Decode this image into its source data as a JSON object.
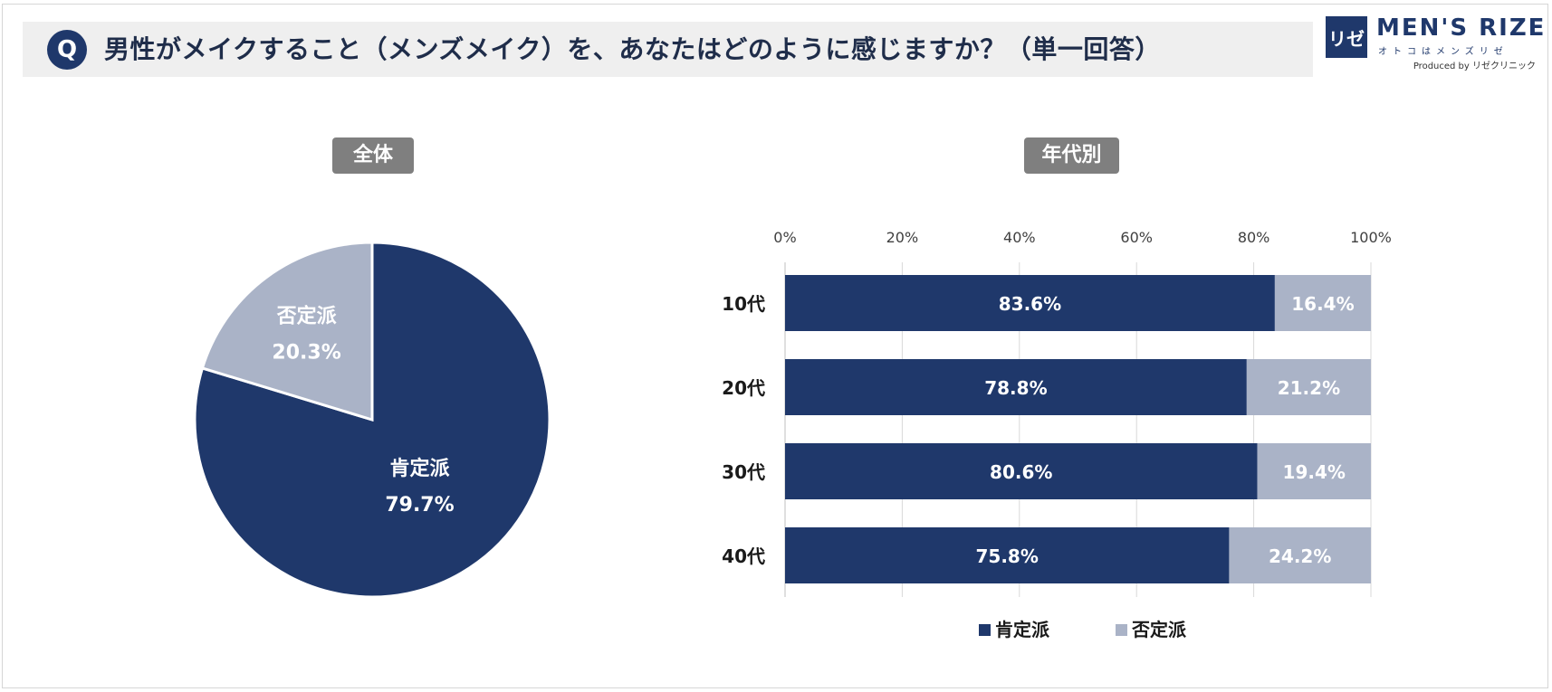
{
  "header": {
    "q_mark": "Q",
    "question": "男性がメイクすること（メンズメイク）を、あなたはどのように感じますか？（単一回答）"
  },
  "logo": {
    "mark": "リゼ",
    "brand": "MEN'S RIZE",
    "subtitle": "オトコはメンズリゼ",
    "produced_by": "Produced by リゼクリニック"
  },
  "sections": {
    "overall_label": "全体",
    "by_age_label": "年代別"
  },
  "colors": {
    "positive": "#1f386b",
    "negative": "#aab3c7"
  },
  "chart_data": [
    {
      "type": "pie",
      "title": "全体",
      "slices": [
        {
          "label": "肯定派",
          "value": 79.7,
          "display": "79.7%"
        },
        {
          "label": "否定派",
          "value": 20.3,
          "display": "20.3%"
        }
      ]
    },
    {
      "type": "bar",
      "orientation": "horizontal",
      "stacked": true,
      "title": "年代別",
      "categories": [
        "10代",
        "20代",
        "30代",
        "40代"
      ],
      "series": [
        {
          "name": "肯定派",
          "values": [
            83.6,
            78.8,
            80.6,
            75.8
          ],
          "labels": [
            "83.6%",
            "78.8%",
            "80.6%",
            "75.8%"
          ]
        },
        {
          "name": "否定派",
          "values": [
            16.4,
            21.2,
            19.4,
            24.2
          ],
          "labels": [
            "16.4%",
            "21.2%",
            "19.4%",
            "24.2%"
          ]
        }
      ],
      "xlim": [
        0,
        100
      ],
      "xticks": [
        "0%",
        "20%",
        "40%",
        "60%",
        "80%",
        "100%"
      ],
      "grid": true,
      "legend": "bottom"
    }
  ]
}
